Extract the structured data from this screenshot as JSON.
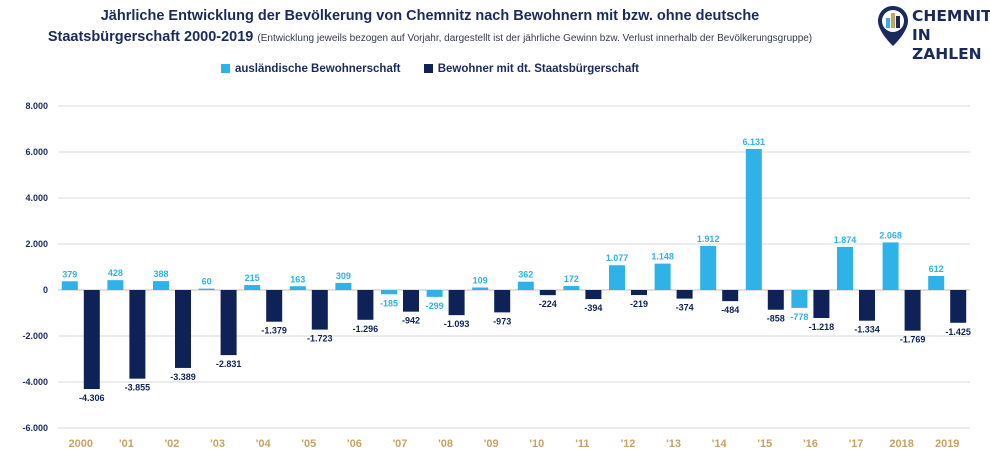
{
  "title": {
    "line1": "Jährliche Entwicklung der Bevölkerung von Chemnitz nach Bewohnern mit bzw. ohne deutsche",
    "line2": "Staatsbürgerschaft 2000-2019",
    "subtitle": "(Entwicklung jeweils bezogen auf Vorjahr, dargestellt ist der jährliche Gewinn bzw. Verlust innerhalb der Bevölkerungsgruppe)"
  },
  "logo": {
    "line1": "CHEMNITZ",
    "line2": "IN ZAHLEN",
    "icon": "map-pin-city-icon"
  },
  "colors": {
    "foreign": "#2eb2e8",
    "german": "#0f2257",
    "axis_text": "#1b2a5e",
    "year_text": "#c8a165",
    "grid": "#d9d9d9"
  },
  "chart_data": {
    "type": "bar",
    "categories": [
      "2000",
      "'01",
      "'02",
      "'03",
      "'04",
      "'05",
      "'06",
      "'07",
      "'08",
      "'09",
      "'10",
      "'11",
      "'12",
      "'13",
      "'14",
      "'15",
      "'16",
      "'17",
      "2018",
      "2019"
    ],
    "series": [
      {
        "name": "ausländische Bewohnerschaft",
        "color": "#2eb2e8",
        "values": [
          379,
          428,
          388,
          60,
          215,
          163,
          309,
          -185,
          -299,
          109,
          362,
          172,
          1077,
          1148,
          1912,
          6131,
          -778,
          1874,
          2068,
          612
        ],
        "labels": [
          "379",
          "428",
          "388",
          "60",
          "215",
          "163",
          "309",
          "-185",
          "-299",
          "109",
          "362",
          "172",
          "1.077",
          "1.148",
          "1.912",
          "6.131",
          "-778",
          "1.874",
          "2.068",
          "612"
        ]
      },
      {
        "name": "Bewohner mit dt. Staatsbürgerschaft",
        "color": "#0f2257",
        "values": [
          -4306,
          -3855,
          -3389,
          -2831,
          -1379,
          -1723,
          -1296,
          -942,
          -1093,
          -973,
          -224,
          -394,
          -219,
          -374,
          -484,
          -858,
          -1218,
          -1334,
          -1769,
          -1425
        ],
        "labels": [
          "-4.306",
          "-3.855",
          "-3.389",
          "-2.831",
          "-1.379",
          "-1.723",
          "-1.296",
          "-942",
          "-1.093",
          "-973",
          "-224",
          "-394",
          "-219",
          "-374",
          "-484",
          "-858",
          "-1.218",
          "-1.334",
          "-1.769",
          "-1.425"
        ]
      }
    ],
    "ylim": [
      -6000,
      8000
    ],
    "yticks": [
      8000,
      6000,
      4000,
      2000,
      0,
      -2000,
      -4000,
      -6000
    ],
    "ytick_labels": [
      "8.000",
      "6.000",
      "4.000",
      "2.000",
      "0",
      "-2.000",
      "-4.000",
      "-6.000"
    ],
    "grid": true,
    "legend_position": "top-center"
  }
}
